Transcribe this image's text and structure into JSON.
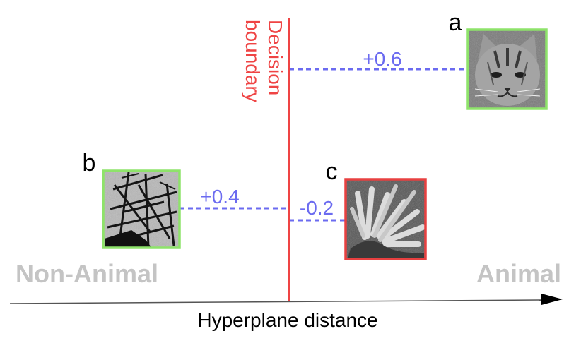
{
  "decision_boundary_label": [
    "Decision",
    "boundary"
  ],
  "x_axis_label": "Hyperplane distance",
  "side_labels": {
    "left": "Non-Animal",
    "right": "Animal"
  },
  "examples": [
    {
      "id": "a",
      "letter": "a",
      "distance": "+0.6",
      "subject": "cat face",
      "frame_color": "#8ee36a"
    },
    {
      "id": "b",
      "letter": "b",
      "distance": "+0.4",
      "subject": "metal scaffolding",
      "frame_color": "#8ee36a"
    },
    {
      "id": "c",
      "letter": "c",
      "distance": "-0.2",
      "subject": "coral-like growth",
      "frame_color": "#e84040"
    }
  ],
  "colors": {
    "boundary": "#ef4444",
    "dashed_lines": "#6b6bf0",
    "side_labels": "#c4c4c4",
    "correct_frame": "#8ee36a",
    "incorrect_frame": "#e84040"
  }
}
